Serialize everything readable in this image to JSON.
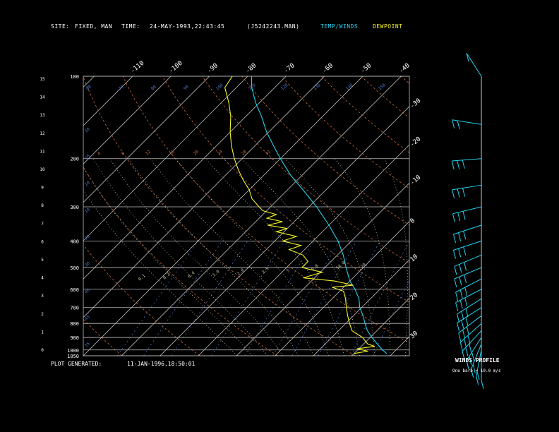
{
  "header": {
    "site_label": "SITE:",
    "site_value": "FIXED, MAN",
    "time_label": "TIME:",
    "time_value": "24-MAY-1993,22:43:45",
    "file_id": "(J5242243.MAN)",
    "legend_temp": "TEMP/WINDS",
    "legend_dew": "DEWPOINT"
  },
  "footer": {
    "generated_label": "PLOT GENERATED:",
    "generated_value": "11-JAN-1996,18:50:01"
  },
  "wind_profile": {
    "title": "WINDS PROFILE",
    "subtitle": "One barb = 10.0 m/s"
  },
  "colors": {
    "temperature": "#22d3ee",
    "dewpoint": "#f5f52a",
    "isobar": "#bfbfbf",
    "isotherm": "#d8d8d8",
    "dry_adiabat": "#c96a3c",
    "moist_adiabat": "#c4bfa0",
    "mixing_ratio": "#4a78c8"
  },
  "chart_data": {
    "type": "line",
    "subtype": "skew-T log-P sounding",
    "pressure_levels": [
      100,
      200,
      300,
      400,
      500,
      600,
      700,
      800,
      900,
      1000,
      1050
    ],
    "pressure_tick_labels": [
      "100",
      "200",
      "300",
      "400",
      "500",
      "600",
      "700",
      "800",
      "900",
      "1000",
      "1050"
    ],
    "height_km_ticks": [
      "15",
      "14",
      "13",
      "12",
      "11",
      "10",
      "9",
      "8",
      "7",
      "6",
      "5",
      "4",
      "3",
      "2",
      "1",
      "0"
    ],
    "top_temp_labels": [
      "-110",
      "-100",
      "-90",
      "-80",
      "-70",
      "-60",
      "-50",
      "-40"
    ],
    "right_temp_labels": [
      "-30",
      "-20",
      "-10",
      "0",
      "10",
      "20",
      "30"
    ],
    "dry_adiabat_labels": [
      "4",
      "8",
      "12",
      "16",
      "20",
      "24",
      "28",
      "32"
    ],
    "theta_labels": [
      "60",
      "70",
      "80",
      "90",
      "100",
      "110",
      "120",
      "130",
      "140",
      "150"
    ],
    "mixing_ratio_labels": [
      "0.1",
      "0.2",
      "0.4",
      "1.0",
      "2.0",
      "3.5",
      "5",
      "8.0",
      "14.0",
      "20"
    ],
    "left_small_labels": [
      "10",
      "10",
      "10",
      "10",
      "20",
      "30",
      "40",
      "45",
      "55"
    ],
    "series": [
      {
        "name": "TEMP/WINDS",
        "points": [
          {
            "p": 1030,
            "t": 28.5
          },
          {
            "p": 1000,
            "t": 26.5
          },
          {
            "p": 950,
            "t": 23.5
          },
          {
            "p": 900,
            "t": 20.5
          },
          {
            "p": 850,
            "t": 17.5
          },
          {
            "p": 800,
            "t": 15
          },
          {
            "p": 750,
            "t": 12.5
          },
          {
            "p": 700,
            "t": 9.5
          },
          {
            "p": 650,
            "t": 7
          },
          {
            "p": 600,
            "t": 3.5
          },
          {
            "p": 560,
            "t": 0
          },
          {
            "p": 500,
            "t": -4.5
          },
          {
            "p": 450,
            "t": -8.5
          },
          {
            "p": 400,
            "t": -13.5
          },
          {
            "p": 350,
            "t": -20
          },
          {
            "p": 300,
            "t": -28
          },
          {
            "p": 260,
            "t": -36
          },
          {
            "p": 230,
            "t": -43
          },
          {
            "p": 200,
            "t": -50
          },
          {
            "p": 180,
            "t": -55
          },
          {
            "p": 160,
            "t": -60.5
          },
          {
            "p": 140,
            "t": -66
          },
          {
            "p": 125,
            "t": -71
          },
          {
            "p": 110,
            "t": -76
          },
          {
            "p": 100,
            "t": -79
          }
        ]
      },
      {
        "name": "DEWPOINT",
        "points": [
          {
            "p": 1030,
            "t": 20
          },
          {
            "p": 1010,
            "t": 23
          },
          {
            "p": 990,
            "t": 19.5
          },
          {
            "p": 970,
            "t": 23.5
          },
          {
            "p": 950,
            "t": 21
          },
          {
            "p": 900,
            "t": 18
          },
          {
            "p": 850,
            "t": 13.5
          },
          {
            "p": 800,
            "t": 11
          },
          {
            "p": 750,
            "t": 8.5
          },
          {
            "p": 700,
            "t": 6
          },
          {
            "p": 650,
            "t": 3.5
          },
          {
            "p": 610,
            "t": 1
          },
          {
            "p": 590,
            "t": -3
          },
          {
            "p": 580,
            "t": 2
          },
          {
            "p": 560,
            "t": -4
          },
          {
            "p": 545,
            "t": -13
          },
          {
            "p": 520,
            "t": -9.5
          },
          {
            "p": 500,
            "t": -16
          },
          {
            "p": 475,
            "t": -16
          },
          {
            "p": 450,
            "t": -19
          },
          {
            "p": 430,
            "t": -24
          },
          {
            "p": 415,
            "t": -22
          },
          {
            "p": 400,
            "t": -28
          },
          {
            "p": 385,
            "t": -25.5
          },
          {
            "p": 370,
            "t": -32
          },
          {
            "p": 360,
            "t": -30
          },
          {
            "p": 350,
            "t": -36
          },
          {
            "p": 340,
            "t": -33
          },
          {
            "p": 330,
            "t": -38
          },
          {
            "p": 320,
            "t": -36.5
          },
          {
            "p": 310,
            "t": -41
          },
          {
            "p": 300,
            "t": -43
          },
          {
            "p": 280,
            "t": -47
          },
          {
            "p": 260,
            "t": -50
          },
          {
            "p": 240,
            "t": -54
          },
          {
            "p": 220,
            "t": -58
          },
          {
            "p": 200,
            "t": -62
          },
          {
            "p": 180,
            "t": -66
          },
          {
            "p": 160,
            "t": -70
          },
          {
            "p": 140,
            "t": -74
          },
          {
            "p": 125,
            "t": -78
          },
          {
            "p": 110,
            "t": -83
          },
          {
            "p": 100,
            "t": -84
          }
        ]
      }
    ],
    "winds": [
      {
        "p": 1030,
        "dir": 180,
        "speed": 10
      },
      {
        "p": 1000,
        "dir": 190,
        "speed": 15
      },
      {
        "p": 950,
        "dir": 200,
        "speed": 20
      },
      {
        "p": 900,
        "dir": 210,
        "speed": 25
      },
      {
        "p": 850,
        "dir": 220,
        "speed": 25
      },
      {
        "p": 800,
        "dir": 225,
        "speed": 25
      },
      {
        "p": 750,
        "dir": 230,
        "speed": 25
      },
      {
        "p": 700,
        "dir": 235,
        "speed": 25
      },
      {
        "p": 650,
        "dir": 235,
        "speed": 25
      },
      {
        "p": 600,
        "dir": 240,
        "speed": 25
      },
      {
        "p": 550,
        "dir": 240,
        "speed": 25
      },
      {
        "p": 500,
        "dir": 245,
        "speed": 25
      },
      {
        "p": 450,
        "dir": 245,
        "speed": 25
      },
      {
        "p": 400,
        "dir": 250,
        "speed": 25
      },
      {
        "p": 350,
        "dir": 250,
        "speed": 25
      },
      {
        "p": 300,
        "dir": 255,
        "speed": 25
      },
      {
        "p": 250,
        "dir": 260,
        "speed": 25
      },
      {
        "p": 200,
        "dir": 265,
        "speed": 25
      },
      {
        "p": 150,
        "dir": 280,
        "speed": 15
      },
      {
        "p": 100,
        "dir": 330,
        "speed": 10
      }
    ],
    "ylim": [
      100,
      1050
    ],
    "xlim_at_base": [
      -50,
      35
    ],
    "y_scale": "log",
    "skew": "45 degrees",
    "grid": true,
    "legend": "top-center"
  }
}
